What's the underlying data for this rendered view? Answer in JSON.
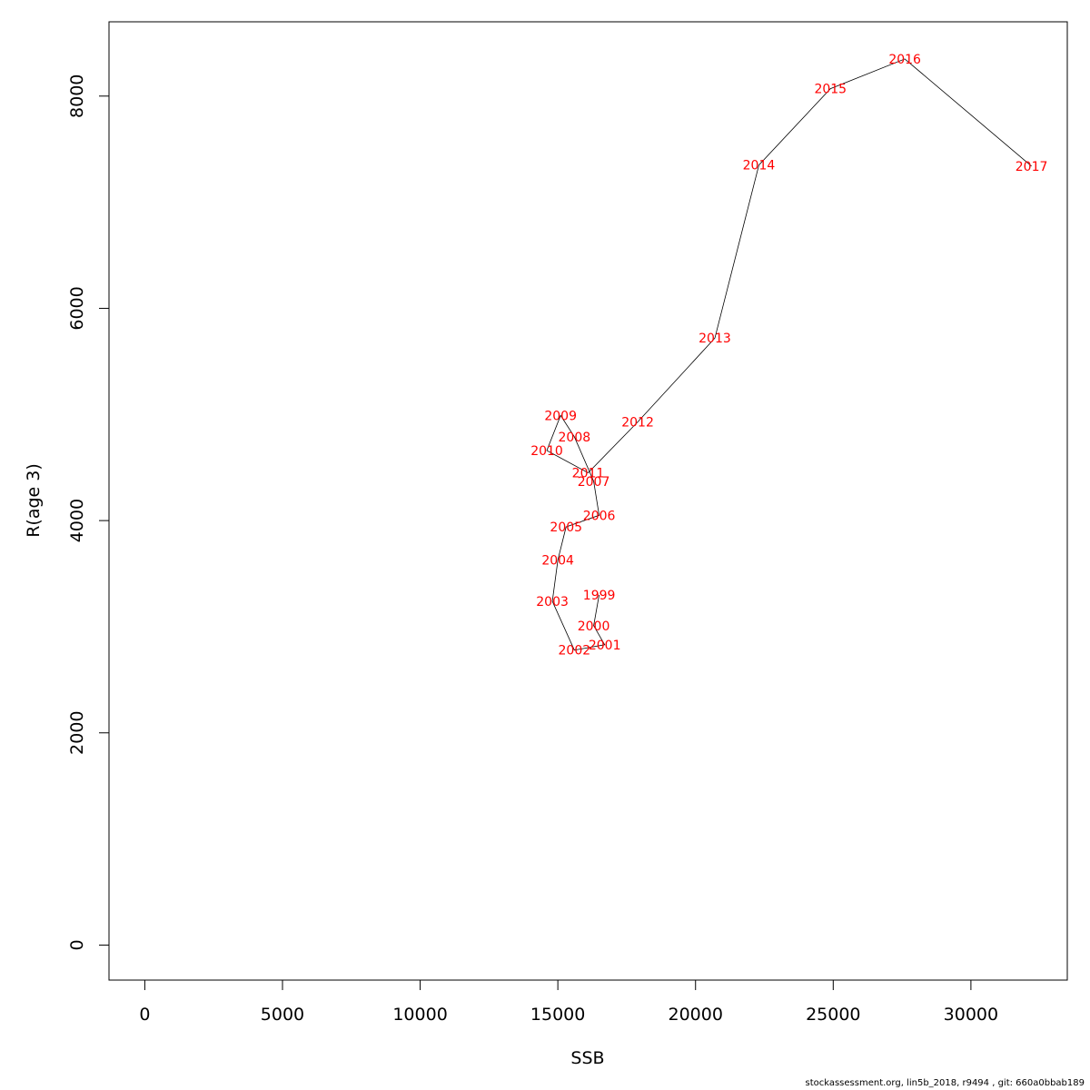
{
  "chart_data": {
    "type": "line",
    "xlabel": "SSB",
    "ylabel": "R(age 3)",
    "xlim": [
      -1300,
      33500
    ],
    "ylim": [
      -330,
      8700
    ],
    "x_ticks": [
      0,
      5000,
      10000,
      15000,
      20000,
      25000,
      30000
    ],
    "y_ticks": [
      0,
      2000,
      4000,
      6000,
      8000
    ],
    "x_tick_labels": [
      "0",
      "5000",
      "10000",
      "15000",
      "20000",
      "25000",
      "30000"
    ],
    "y_tick_labels": [
      "0",
      "2000",
      "4000",
      "6000",
      "8000"
    ],
    "series_color": "#000000",
    "label_color": "#ff0000",
    "points": [
      {
        "year": "1999",
        "x": 16500,
        "y": 3300
      },
      {
        "year": "2000",
        "x": 16300,
        "y": 3010
      },
      {
        "year": "2001",
        "x": 16700,
        "y": 2830
      },
      {
        "year": "2002",
        "x": 15600,
        "y": 2780
      },
      {
        "year": "2003",
        "x": 14800,
        "y": 3240
      },
      {
        "year": "2004",
        "x": 15000,
        "y": 3630
      },
      {
        "year": "2005",
        "x": 15300,
        "y": 3940
      },
      {
        "year": "2006",
        "x": 16500,
        "y": 4050
      },
      {
        "year": "2007",
        "x": 16300,
        "y": 4370
      },
      {
        "year": "2008",
        "x": 15600,
        "y": 4790
      },
      {
        "year": "2009",
        "x": 15100,
        "y": 4990
      },
      {
        "year": "2010",
        "x": 14600,
        "y": 4660
      },
      {
        "year": "2011",
        "x": 16100,
        "y": 4450
      },
      {
        "year": "2012",
        "x": 17900,
        "y": 4930
      },
      {
        "year": "2013",
        "x": 20700,
        "y": 5720
      },
      {
        "year": "2014",
        "x": 22300,
        "y": 7350
      },
      {
        "year": "2015",
        "x": 24900,
        "y": 8070
      },
      {
        "year": "2016",
        "x": 27600,
        "y": 8350
      },
      {
        "year": "2017",
        "x": 32200,
        "y": 7340
      }
    ]
  },
  "footer": "stockassessment.org, lin5b_2018, r9494 , git: 660a0bbab189"
}
